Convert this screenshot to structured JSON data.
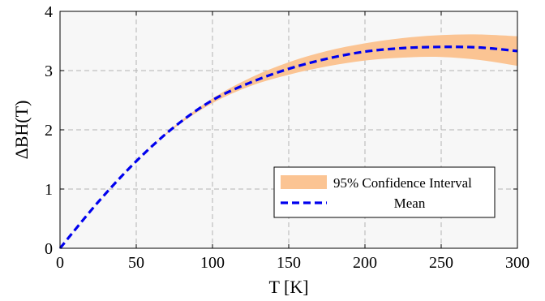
{
  "chart_data": {
    "type": "line",
    "xlabel": "T [K]",
    "ylabel": "ΔBH(T)",
    "xlim": [
      0,
      300
    ],
    "ylim": [
      0,
      4
    ],
    "xticks": [
      0,
      50,
      100,
      150,
      200,
      250,
      300
    ],
    "yticks": [
      0,
      1,
      2,
      3,
      4
    ],
    "x_tick_labels": [
      "0",
      "50",
      "100",
      "150",
      "200",
      "250",
      "300"
    ],
    "y_tick_labels": [
      "0",
      "1",
      "2",
      "3",
      "4"
    ],
    "grid": true,
    "legend_position": "bottom-right",
    "series": [
      {
        "name": "95% Confidence Interval",
        "kind": "band",
        "color": "#fbc493",
        "x": [
          0,
          25,
          50,
          75,
          100,
          125,
          150,
          175,
          200,
          225,
          250,
          275,
          300
        ],
        "lower": [
          0,
          0.78,
          1.47,
          2.03,
          2.45,
          2.74,
          2.93,
          3.07,
          3.17,
          3.22,
          3.23,
          3.18,
          3.08
        ],
        "upper": [
          0,
          0.78,
          1.47,
          2.06,
          2.53,
          2.88,
          3.14,
          3.33,
          3.46,
          3.55,
          3.6,
          3.61,
          3.58
        ]
      },
      {
        "name": "Mean",
        "kind": "line",
        "color": "#0000ee",
        "dashed": true,
        "x": [
          0,
          25,
          50,
          75,
          100,
          125,
          150,
          175,
          200,
          225,
          250,
          275,
          300
        ],
        "y": [
          0,
          0.78,
          1.47,
          2.05,
          2.5,
          2.8,
          3.03,
          3.2,
          3.32,
          3.38,
          3.4,
          3.39,
          3.33
        ]
      }
    ]
  }
}
